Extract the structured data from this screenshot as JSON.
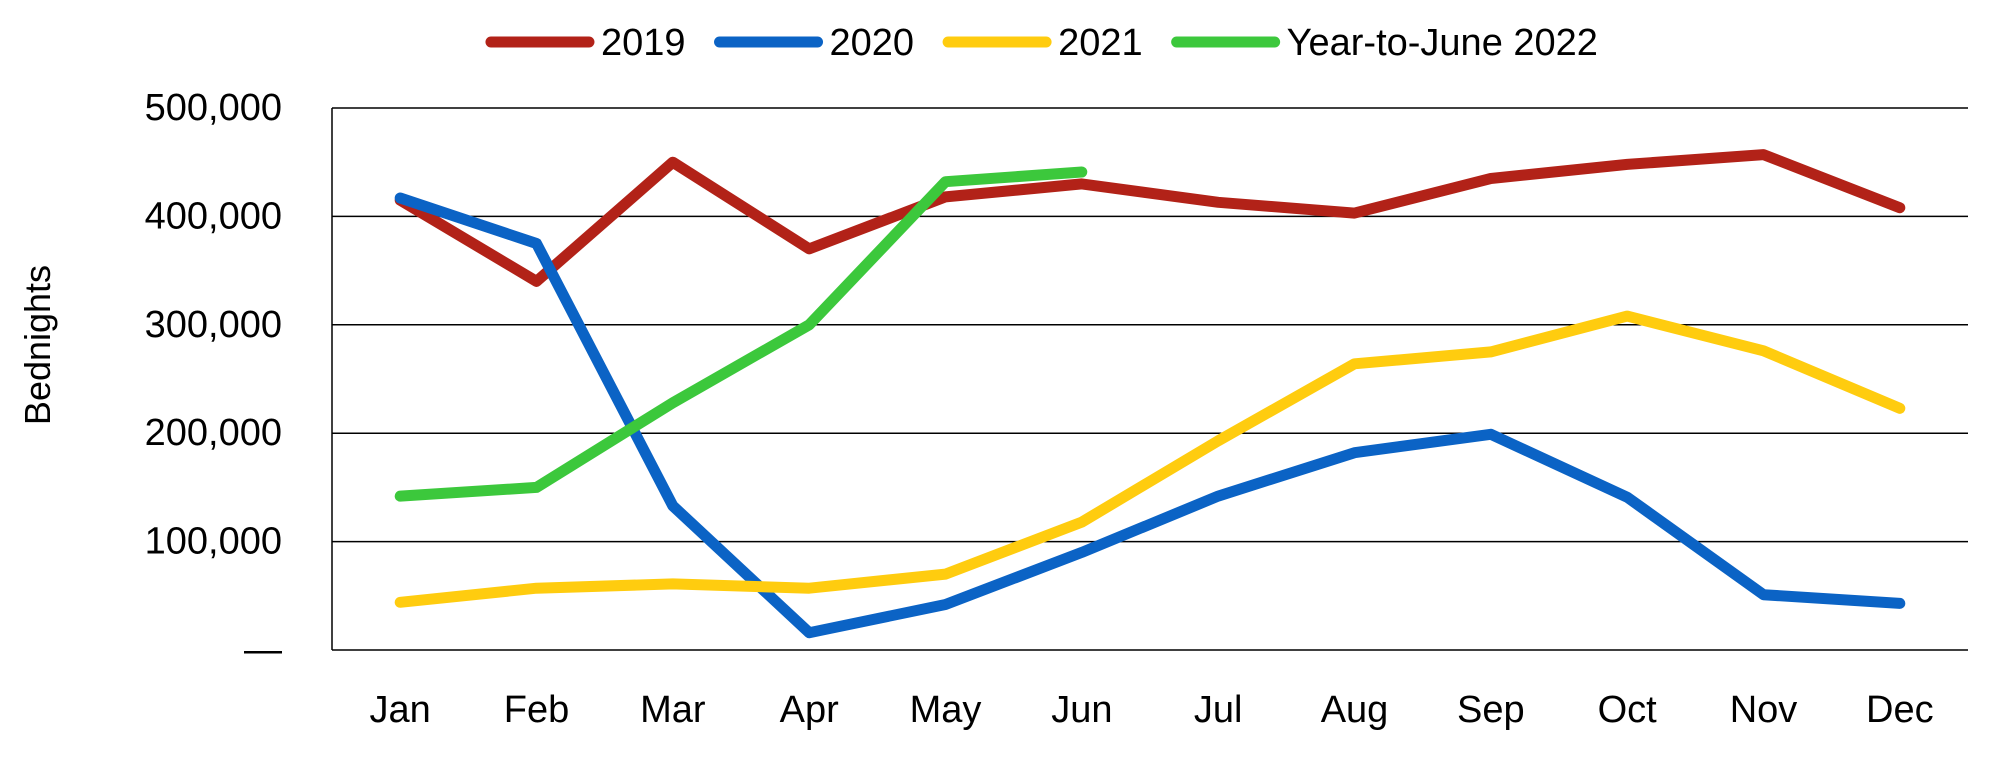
{
  "chart_data": {
    "type": "line",
    "title": "",
    "xlabel": "",
    "ylabel": "Bednights",
    "categories": [
      "Jan",
      "Feb",
      "Mar",
      "Apr",
      "May",
      "Jun",
      "Jul",
      "Aug",
      "Sep",
      "Oct",
      "Nov",
      "Dec"
    ],
    "ylim": [
      0,
      500000
    ],
    "yticks": [
      0,
      100000,
      200000,
      300000,
      400000,
      500000
    ],
    "ytick_labels": [
      "—",
      "100,000",
      "200,000",
      "300,000",
      "400,000",
      "500,000"
    ],
    "grid": true,
    "legend_position": "top",
    "series": [
      {
        "name": "2019",
        "color": "#B22218",
        "values": [
          415000,
          340000,
          450000,
          370000,
          418000,
          430000,
          413000,
          403000,
          435000,
          448000,
          457000,
          408000
        ]
      },
      {
        "name": "2020",
        "color": "#0B63C5",
        "values": [
          417000,
          375000,
          133000,
          16000,
          42000,
          90000,
          142000,
          182000,
          199000,
          141000,
          51000,
          43000
        ]
      },
      {
        "name": "2021",
        "color": "#FFCC0F",
        "values": [
          44000,
          57000,
          61000,
          57000,
          70000,
          118000,
          193000,
          264000,
          275000,
          308000,
          276000,
          223000
        ]
      },
      {
        "name": "Year-to-June 2022",
        "color": "#3CC83C",
        "values": [
          142000,
          150000,
          228000,
          300000,
          432000,
          441000,
          null,
          null,
          null,
          null,
          null,
          null
        ]
      }
    ]
  }
}
